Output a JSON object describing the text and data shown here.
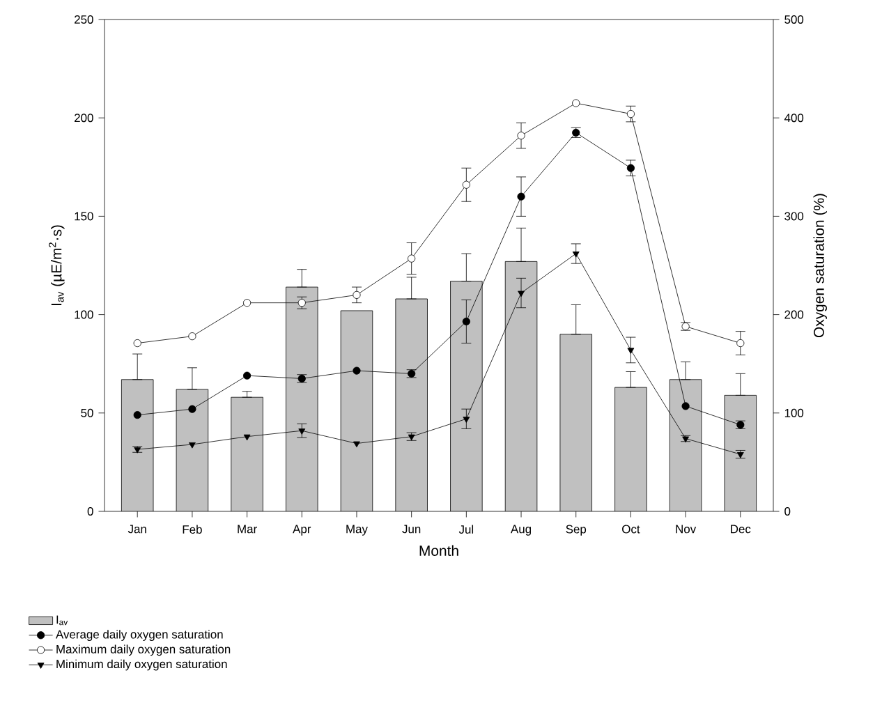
{
  "chart_data": {
    "type": "bar",
    "xlabel": "Month",
    "ylabel": "I$_{av}$ (µE/m$^{2}$·s)",
    "y2label": "Oxygen saturation (%)",
    "categories": [
      "Jan",
      "Feb",
      "Mar",
      "Apr",
      "May",
      "Jun",
      "Jul",
      "Aug",
      "Sep",
      "Oct",
      "Nov",
      "Dec"
    ],
    "series": [
      {
        "name": "I$_{av}$",
        "color": "#c0c0c0",
        "values": [
          67,
          62,
          58,
          114,
          102,
          108,
          117,
          127,
          90,
          63,
          67,
          59
        ],
        "errors": [
          [
            67,
            80
          ],
          [
            62,
            73
          ],
          [
            58,
            61
          ],
          [
            114,
            123
          ],
          null,
          [
            108,
            119
          ],
          [
            117,
            131
          ],
          [
            127,
            144
          ],
          [
            90,
            105
          ],
          [
            63,
            71
          ],
          [
            67,
            76
          ],
          [
            59,
            70
          ]
        ]
      },
      {
        "name": "Average daily oxygen saturation",
        "type": "line",
        "axis": "y2",
        "marker": "circle",
        "color": "#000000",
        "values": [
          98,
          104,
          138,
          135,
          143,
          140,
          193,
          320,
          385,
          349,
          107,
          88
        ],
        "errors": [
          null,
          null,
          null,
          4,
          null,
          4,
          22,
          20,
          5,
          8,
          null,
          4
        ]
      },
      {
        "name": "Maximum daily oxygen saturation",
        "type": "line",
        "axis": "y2",
        "marker": "circle",
        "color": "#ffffff",
        "values": [
          171,
          178,
          212,
          212,
          220,
          257,
          332,
          382,
          415,
          404,
          188,
          171
        ],
        "errors": [
          null,
          null,
          null,
          6,
          8,
          16,
          17,
          13,
          null,
          8,
          4,
          12
        ]
      },
      {
        "name": "Minimum daily oxygen saturation",
        "type": "line",
        "axis": "y2",
        "marker": "triangle",
        "color": "#000000",
        "values": [
          63,
          68,
          76,
          82,
          69,
          76,
          94,
          222,
          262,
          164,
          74,
          58
        ],
        "errors": [
          3,
          null,
          null,
          7,
          null,
          4,
          10,
          15,
          10,
          13,
          3,
          4
        ]
      }
    ],
    "ylim": [
      0,
      250
    ],
    "yticks": [
      0,
      50,
      100,
      150,
      200,
      250
    ],
    "y2lim": [
      0,
      500
    ],
    "y2ticks": [
      0,
      100,
      200,
      300,
      400,
      500
    ],
    "legend": "bottom left",
    "grid": false
  }
}
